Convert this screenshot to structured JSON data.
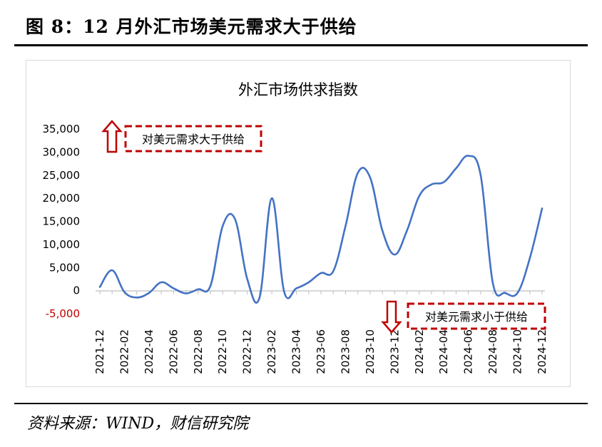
{
  "figure": {
    "title": "图 8：12 月外汇市场美元需求大于供给",
    "source": "资料来源：WIND，财信研究院"
  },
  "chart_data": {
    "type": "line",
    "title": "外汇市场供求指数",
    "categories": [
      "2021-12",
      "2022-01",
      "2022-02",
      "2022-03",
      "2022-04",
      "2022-05",
      "2022-06",
      "2022-07",
      "2022-08",
      "2022-09",
      "2022-10",
      "2022-11",
      "2022-12",
      "2023-01",
      "2023-02",
      "2023-03",
      "2023-04",
      "2023-05",
      "2023-06",
      "2023-07",
      "2023-08",
      "2023-09",
      "2023-10",
      "2023-11",
      "2023-12",
      "2024-01",
      "2024-02",
      "2024-03",
      "2024-04",
      "2024-05",
      "2024-06",
      "2024-07",
      "2024-08",
      "2024-09",
      "2024-10",
      "2024-11",
      "2024-12"
    ],
    "x_tick_labels": [
      "2021-12",
      "2022-02",
      "2022-04",
      "2022-06",
      "2022-08",
      "2022-10",
      "2022-12",
      "2023-02",
      "2023-04",
      "2023-06",
      "2023-08",
      "2023-10",
      "2023-12",
      "2024-02",
      "2024-04",
      "2024-06",
      "2024-08",
      "2024-10",
      "2024-12"
    ],
    "series": [
      {
        "name": "",
        "color": "#4472C4",
        "values": [
          800,
          4400,
          -300,
          -1500,
          -500,
          1800,
          500,
          -600,
          300,
          1000,
          14000,
          15500,
          2500,
          -1500,
          20000,
          -200,
          500,
          1800,
          3800,
          4200,
          14000,
          25500,
          24500,
          13000,
          7800,
          13000,
          20500,
          23000,
          23500,
          26500,
          29200,
          25000,
          1500,
          -500,
          -500,
          7000,
          17800
        ]
      }
    ],
    "ylim": [
      -5000,
      35000
    ],
    "y_ticks": [
      35000,
      30000,
      25000,
      20000,
      15000,
      10000,
      5000,
      0,
      -5000
    ],
    "y_tick_labels": [
      "35,000",
      "30,000",
      "25,000",
      "20,000",
      "15,000",
      "10,000",
      "5,000",
      "0",
      "-5,000"
    ],
    "negative_tick_color": "#C00000",
    "grid": false,
    "annotations": [
      {
        "text": "对美元需求大于供给",
        "arrow": "up",
        "color": "#C00000"
      },
      {
        "text": "对美元需求小于供给",
        "arrow": "down",
        "color": "#C00000"
      }
    ]
  }
}
